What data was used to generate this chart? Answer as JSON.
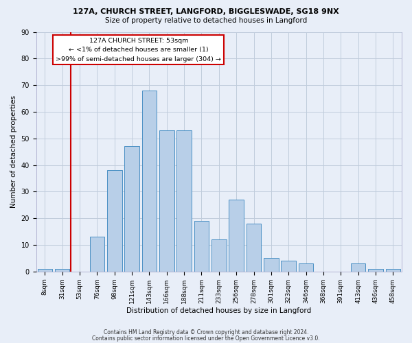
{
  "title1": "127A, CHURCH STREET, LANGFORD, BIGGLESWADE, SG18 9NX",
  "title2": "Size of property relative to detached houses in Langford",
  "xlabel": "Distribution of detached houses by size in Langford",
  "ylabel": "Number of detached properties",
  "footer1": "Contains HM Land Registry data © Crown copyright and database right 2024.",
  "footer2": "Contains public sector information licensed under the Open Government Licence v3.0.",
  "bar_labels": [
    "8sqm",
    "31sqm",
    "53sqm",
    "76sqm",
    "98sqm",
    "121sqm",
    "143sqm",
    "166sqm",
    "188sqm",
    "211sqm",
    "233sqm",
    "256sqm",
    "278sqm",
    "301sqm",
    "323sqm",
    "346sqm",
    "368sqm",
    "391sqm",
    "413sqm",
    "436sqm",
    "458sqm"
  ],
  "bar_values": [
    1,
    1,
    0,
    13,
    38,
    47,
    68,
    53,
    53,
    19,
    12,
    27,
    18,
    5,
    4,
    3,
    0,
    0,
    3,
    1,
    1
  ],
  "bar_color": "#b8cfe8",
  "bar_edge_color": "#4a90c4",
  "background_color": "#e8eef8",
  "red_line_index": 2,
  "annotation_title": "127A CHURCH STREET: 53sqm",
  "annotation_line1": "← <1% of detached houses are smaller (1)",
  "annotation_line2": ">99% of semi-detached houses are larger (304) →",
  "annotation_box_facecolor": "#ffffff",
  "annotation_border_color": "#cc0000",
  "red_line_color": "#cc0000",
  "grid_color": "#c0ccdc",
  "ylim": [
    0,
    90
  ],
  "yticks": [
    0,
    10,
    20,
    30,
    40,
    50,
    60,
    70,
    80,
    90
  ]
}
